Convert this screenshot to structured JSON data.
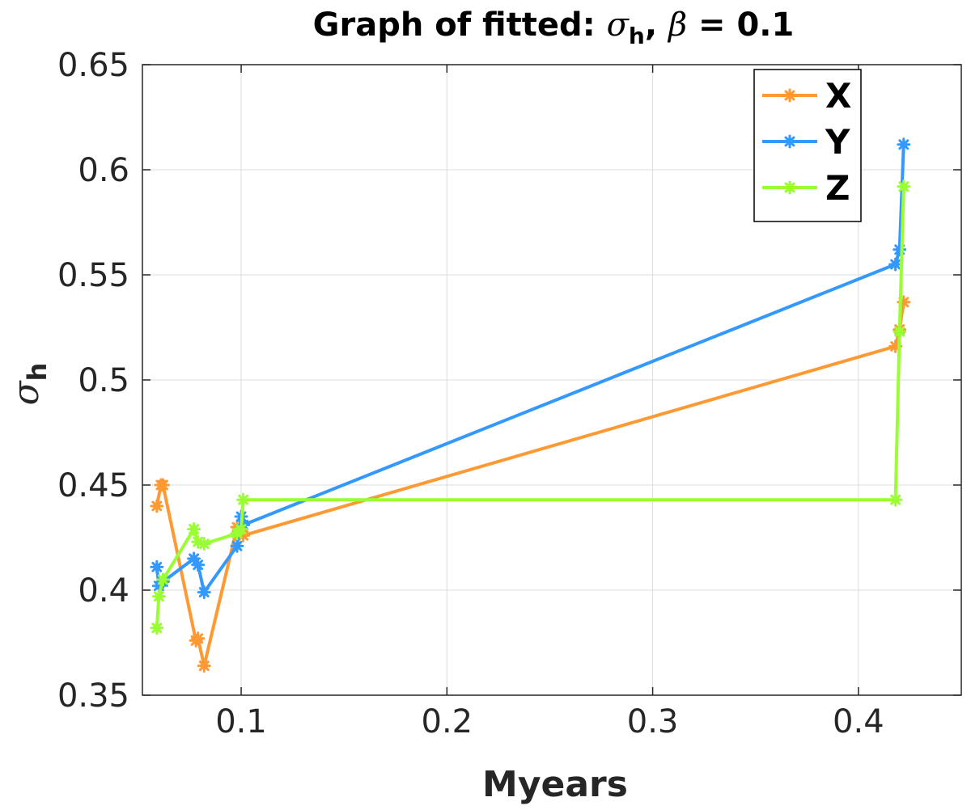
{
  "chart_data": {
    "type": "line",
    "title": {
      "prefix": "Graph of fitted: ",
      "sigma": "σ",
      "sigma_sub": "h",
      "sep": ", ",
      "beta": "β",
      "suffix": " = 0.1"
    },
    "xlabel": "Myears",
    "ylabel": {
      "symbol": "σ",
      "sub": "h"
    },
    "xlim": [
      0.052,
      0.45
    ],
    "ylim": [
      0.35,
      0.65
    ],
    "xticks": [
      0.1,
      0.2,
      0.3,
      0.4
    ],
    "xtick_labels": [
      "0.1",
      "0.2",
      "0.3",
      "0.4"
    ],
    "yticks": [
      0.35,
      0.4,
      0.45,
      0.5,
      0.55,
      0.6,
      0.65
    ],
    "ytick_labels": [
      "0.35",
      "0.4",
      "0.45",
      "0.5",
      "0.55",
      "0.6",
      "0.65"
    ],
    "grid": true,
    "legend_position": "top-right",
    "series": [
      {
        "name": "X",
        "color": "#FF9933",
        "x": [
          0.059,
          0.061,
          0.062,
          0.078,
          0.079,
          0.082,
          0.098,
          0.1,
          0.101,
          0.418,
          0.42,
          0.422
        ],
        "y": [
          0.44,
          0.45,
          0.45,
          0.376,
          0.377,
          0.364,
          0.43,
          0.428,
          0.426,
          0.516,
          0.524,
          0.537
        ]
      },
      {
        "name": "Y",
        "color": "#3399FF",
        "x": [
          0.059,
          0.06,
          0.062,
          0.077,
          0.079,
          0.082,
          0.098,
          0.1,
          0.101,
          0.418,
          0.42,
          0.422
        ],
        "y": [
          0.411,
          0.402,
          0.404,
          0.415,
          0.412,
          0.399,
          0.421,
          0.435,
          0.431,
          0.555,
          0.562,
          0.612
        ]
      },
      {
        "name": "Z",
        "color": "#99FF33",
        "x": [
          0.059,
          0.06,
          0.062,
          0.077,
          0.079,
          0.082,
          0.098,
          0.1,
          0.101,
          0.418,
          0.42,
          0.422
        ],
        "y": [
          0.382,
          0.397,
          0.405,
          0.429,
          0.423,
          0.422,
          0.427,
          0.429,
          0.443,
          0.443,
          0.523,
          0.592
        ]
      }
    ]
  }
}
